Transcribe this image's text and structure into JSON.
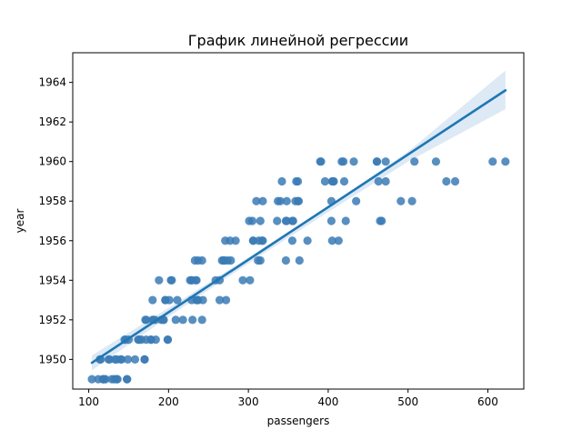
{
  "chart_data": {
    "type": "scatter",
    "title": "График линейной регрессии",
    "xlabel": "passengers",
    "ylabel": "year",
    "xlim": [
      80,
      645
    ],
    "ylim": [
      1948.5,
      1965.5
    ],
    "xticks": [
      100,
      200,
      300,
      400,
      500,
      600
    ],
    "yticks": [
      1950,
      1952,
      1954,
      1956,
      1958,
      1960,
      1962,
      1964
    ],
    "grid": false,
    "legend": "none",
    "points_color": "#3b7bb5",
    "line_color": "#1f77b4",
    "band_color": "#c6dbef",
    "x": [
      112,
      118,
      132,
      129,
      121,
      135,
      148,
      148,
      136,
      119,
      104,
      118,
      115,
      126,
      141,
      135,
      125,
      149,
      170,
      170,
      158,
      133,
      114,
      140,
      145,
      150,
      178,
      163,
      172,
      178,
      199,
      199,
      184,
      162,
      146,
      166,
      171,
      180,
      193,
      181,
      183,
      218,
      230,
      242,
      209,
      191,
      172,
      194,
      196,
      196,
      236,
      235,
      229,
      243,
      264,
      272,
      237,
      211,
      180,
      201,
      204,
      188,
      235,
      227,
      234,
      264,
      302,
      293,
      259,
      229,
      203,
      229,
      242,
      233,
      267,
      269,
      270,
      315,
      364,
      347,
      312,
      274,
      237,
      278,
      284,
      277,
      317,
      313,
      318,
      374,
      413,
      405,
      355,
      306,
      271,
      306,
      315,
      301,
      356,
      348,
      355,
      422,
      465,
      467,
      404,
      347,
      305,
      336,
      340,
      318,
      362,
      348,
      363,
      435,
      491,
      505,
      404,
      359,
      310,
      337,
      360,
      342,
      406,
      396,
      420,
      472,
      548,
      559,
      463,
      407,
      362,
      405,
      417,
      391,
      419,
      461,
      472,
      535,
      622,
      606,
      508,
      461,
      390,
      432
    ],
    "y": [
      1949,
      1949,
      1949,
      1949,
      1949,
      1949,
      1949,
      1949,
      1949,
      1949,
      1949,
      1949,
      1950,
      1950,
      1950,
      1950,
      1950,
      1950,
      1950,
      1950,
      1950,
      1950,
      1950,
      1950,
      1951,
      1951,
      1951,
      1951,
      1951,
      1951,
      1951,
      1951,
      1951,
      1951,
      1951,
      1951,
      1952,
      1952,
      1952,
      1952,
      1952,
      1952,
      1952,
      1952,
      1952,
      1952,
      1952,
      1952,
      1953,
      1953,
      1953,
      1953,
      1953,
      1953,
      1953,
      1953,
      1953,
      1953,
      1953,
      1953,
      1954,
      1954,
      1954,
      1954,
      1954,
      1954,
      1954,
      1954,
      1954,
      1954,
      1954,
      1954,
      1955,
      1955,
      1955,
      1955,
      1955,
      1955,
      1955,
      1955,
      1955,
      1955,
      1955,
      1955,
      1956,
      1956,
      1956,
      1956,
      1956,
      1956,
      1956,
      1956,
      1956,
      1956,
      1956,
      1956,
      1957,
      1957,
      1957,
      1957,
      1957,
      1957,
      1957,
      1957,
      1957,
      1957,
      1957,
      1957,
      1958,
      1958,
      1958,
      1958,
      1958,
      1958,
      1958,
      1958,
      1958,
      1958,
      1958,
      1958,
      1959,
      1959,
      1959,
      1959,
      1959,
      1959,
      1959,
      1959,
      1959,
      1959,
      1959,
      1959,
      1960,
      1960,
      1960,
      1960,
      1960,
      1960,
      1960,
      1960,
      1960,
      1960,
      1960,
      1960
    ],
    "regression_line": {
      "x": [
        104,
        622
      ],
      "y": [
        1949.83,
        1963.6
      ]
    },
    "confidence_band": {
      "x": [
        104,
        200,
        300,
        400,
        500,
        622
      ],
      "upper": [
        1950.2,
        1952.6,
        1955.15,
        1957.75,
        1960.5,
        1964.6
      ],
      "lower": [
        1949.45,
        1952.15,
        1954.85,
        1957.45,
        1960.0,
        1962.65
      ]
    }
  }
}
